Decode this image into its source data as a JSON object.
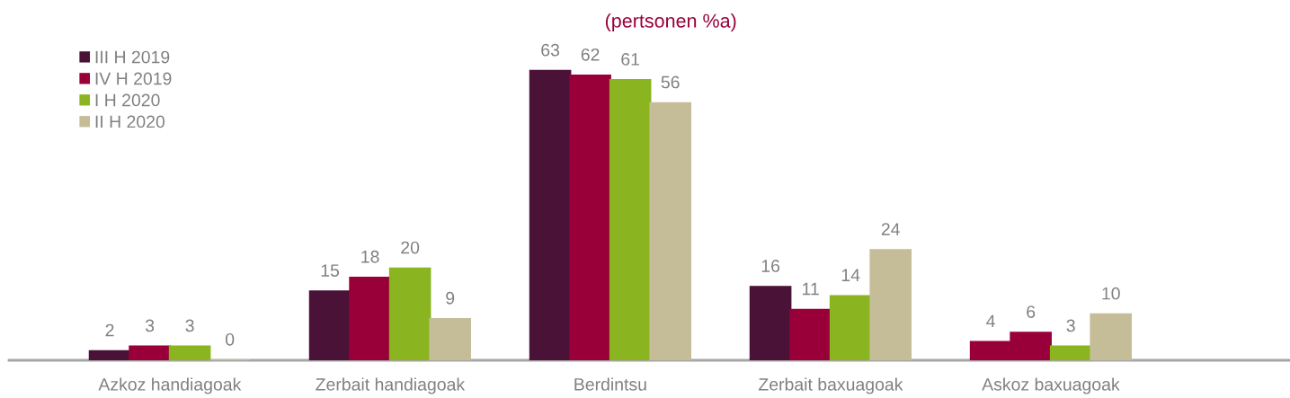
{
  "chart_data": {
    "type": "bar",
    "title": "(pertsonen %a)",
    "categories": [
      "Azkoz handiagoak",
      "Zerbait handiagoak",
      "Berdintsu",
      "Zerbait baxuagoak",
      "Askoz baxuagoak"
    ],
    "series": [
      {
        "name": "III H 2019",
        "color": "#4b1238",
        "colors": [
          "#4b1238",
          "#4b1238",
          "#4b1238",
          "#4b1238",
          "#990039"
        ],
        "values": [
          2,
          15,
          63,
          16,
          4
        ]
      },
      {
        "name": "IV H 2019",
        "color": "#990039",
        "values": [
          3,
          18,
          62,
          11,
          6
        ]
      },
      {
        "name": "I H 2020",
        "color": "#8ab420",
        "values": [
          3,
          20,
          61,
          14,
          3
        ]
      },
      {
        "name": "II H 2020",
        "color": "#c5bd98",
        "values": [
          0,
          9,
          56,
          24,
          10
        ]
      }
    ],
    "data_labels": true,
    "legend": "top left"
  }
}
